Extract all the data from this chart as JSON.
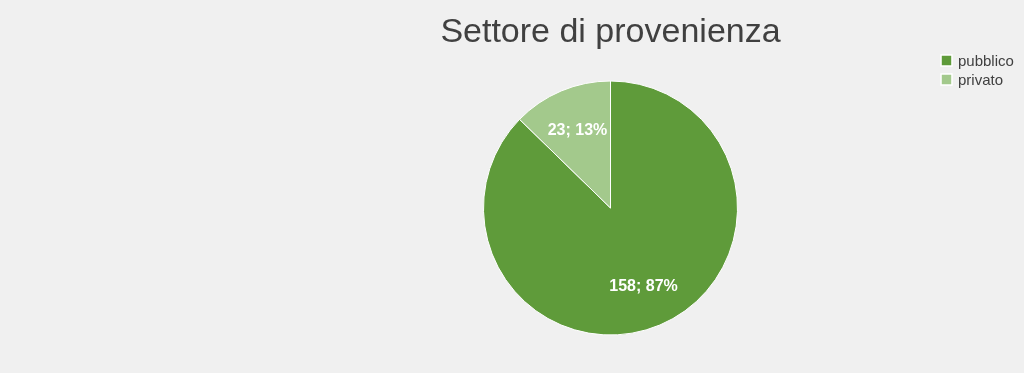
{
  "chart_data": {
    "type": "pie",
    "title": "Settore di provenienza",
    "categories": [
      "pubblico",
      "privato"
    ],
    "values": [
      158,
      23
    ],
    "colors": [
      "#5f9b3a",
      "#a3c98c"
    ],
    "value_labels": [
      "158; 87%",
      "23; 13%"
    ],
    "legend": "right"
  }
}
